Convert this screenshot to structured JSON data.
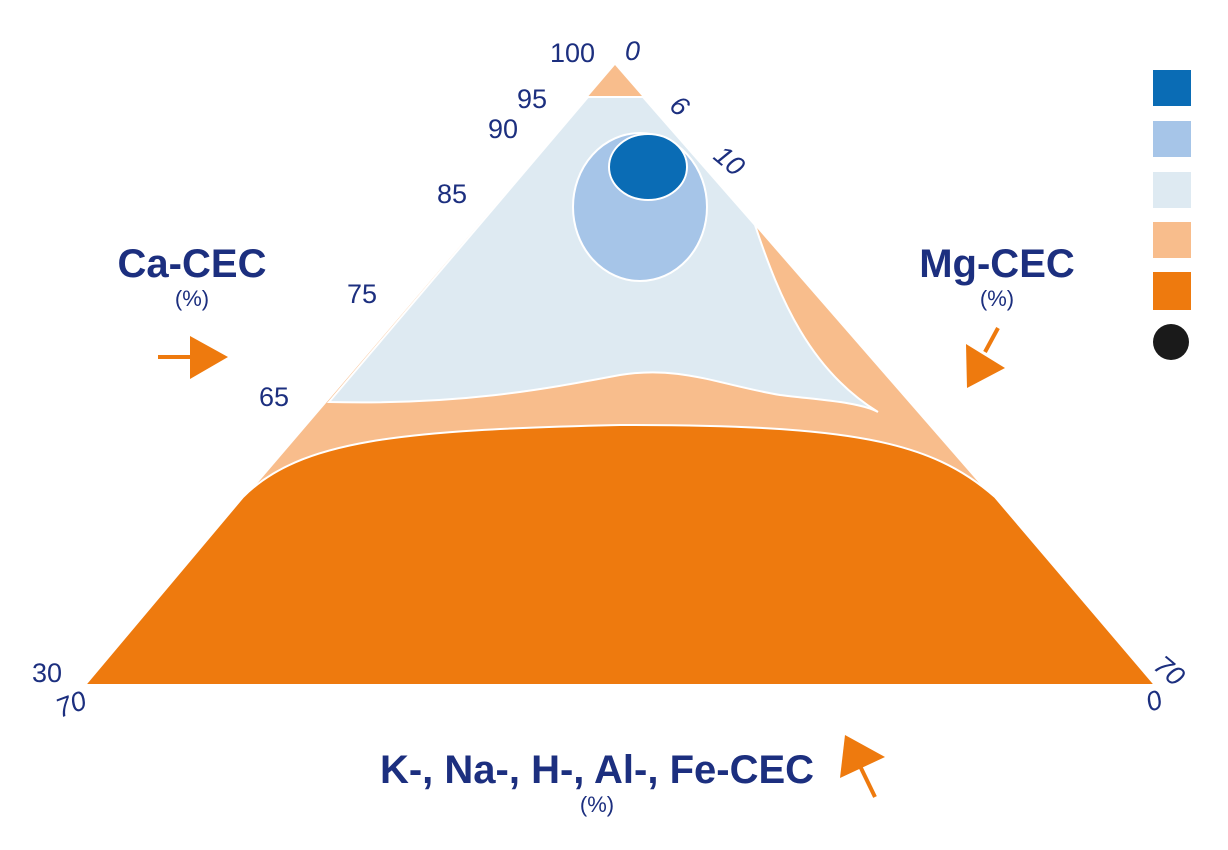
{
  "axes": {
    "left": {
      "title": "Ca-CEC",
      "unit": "(%)",
      "ticks": [
        "100",
        "95",
        "90",
        "85",
        "75",
        "65",
        "30"
      ]
    },
    "right": {
      "title": "Mg-CEC",
      "unit": "(%)",
      "ticks": [
        "0",
        "6",
        "10",
        "70"
      ]
    },
    "bottom": {
      "title": "K-, Na-, H-, Al-, Fe-CEC",
      "unit": "(%)",
      "ticks": [
        "70",
        "0"
      ]
    }
  }
}
